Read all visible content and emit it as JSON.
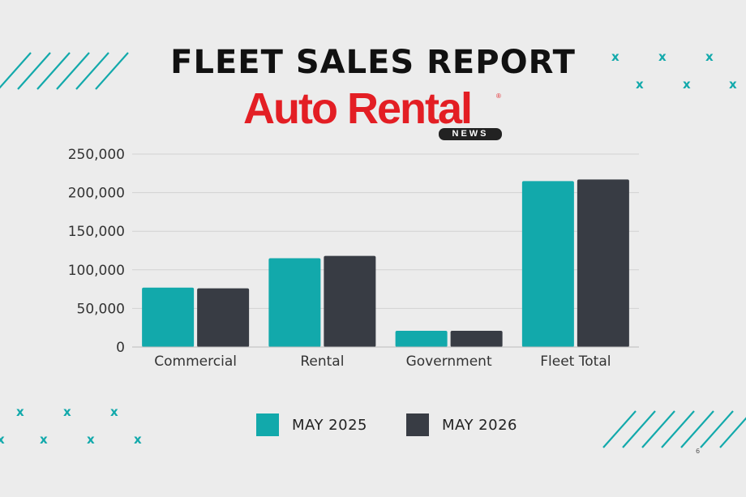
{
  "title": "FLEET SALES REPORT",
  "logo": {
    "main": "Auto Rental",
    "sub": "NEWS",
    "trademark": "®"
  },
  "page_number": "6",
  "colors": {
    "series1": "#12a9ab",
    "series2": "#383c44",
    "accent": "#12a9ab",
    "logo": "#e31e24"
  },
  "decor": {
    "mark": "x"
  },
  "chart_data": {
    "type": "bar",
    "title": "",
    "xlabel": "",
    "ylabel": "",
    "categories": [
      "Commercial",
      "Rental",
      "Government",
      "Fleet Total"
    ],
    "series": [
      {
        "name": "MAY 2025",
        "values": [
          77000,
          115000,
          21000,
          215000
        ]
      },
      {
        "name": "MAY 2026",
        "values": [
          76000,
          118000,
          21000,
          217000
        ]
      }
    ],
    "ylim": [
      0,
      250000
    ],
    "yticks": [
      0,
      50000,
      100000,
      150000,
      200000,
      250000
    ],
    "ytick_labels": [
      "0",
      "50,000",
      "100,000",
      "150,000",
      "200,000",
      "250,000"
    ],
    "grid": true,
    "legend_position": "bottom"
  }
}
